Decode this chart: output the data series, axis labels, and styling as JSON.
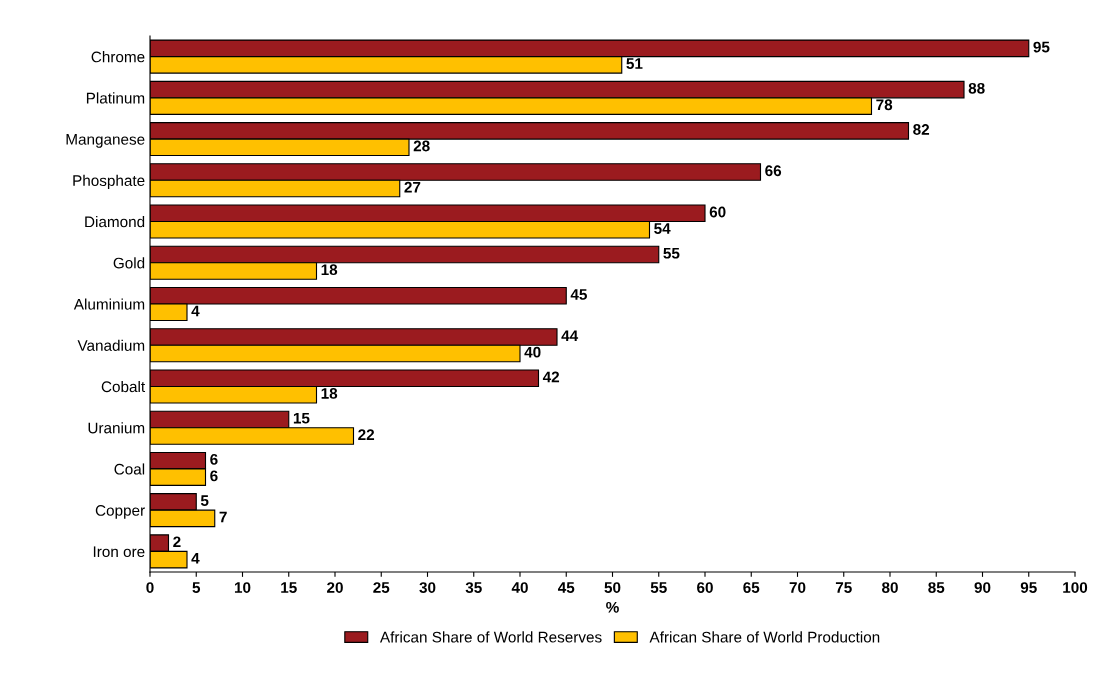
{
  "chart_data": {
    "type": "bar",
    "orientation": "horizontal",
    "xlabel": "%",
    "categories": [
      "Chrome",
      "Platinum",
      "Manganese",
      "Phosphate",
      "Diamond",
      "Gold",
      "Aluminium",
      "Vanadium",
      "Cobalt",
      "Uranium",
      "Coal",
      "Copper",
      "Iron ore"
    ],
    "series": [
      {
        "name": "African Share of World Reserves",
        "color": "#9b1b1f",
        "values": [
          95,
          88,
          82,
          66,
          60,
          55,
          45,
          44,
          42,
          15,
          6,
          5,
          2
        ]
      },
      {
        "name": "African Share of World Production",
        "color": "#ffc000",
        "values": [
          51,
          78,
          28,
          27,
          54,
          18,
          4,
          40,
          18,
          22,
          6,
          7,
          4
        ]
      }
    ],
    "xlim": [
      0,
      100
    ],
    "xticks": [
      0,
      5,
      10,
      15,
      20,
      25,
      30,
      35,
      40,
      45,
      50,
      55,
      60,
      65,
      70,
      75,
      80,
      85,
      90,
      95,
      100
    ],
    "data_labels": true,
    "legend": "bottom",
    "grid": false
  }
}
